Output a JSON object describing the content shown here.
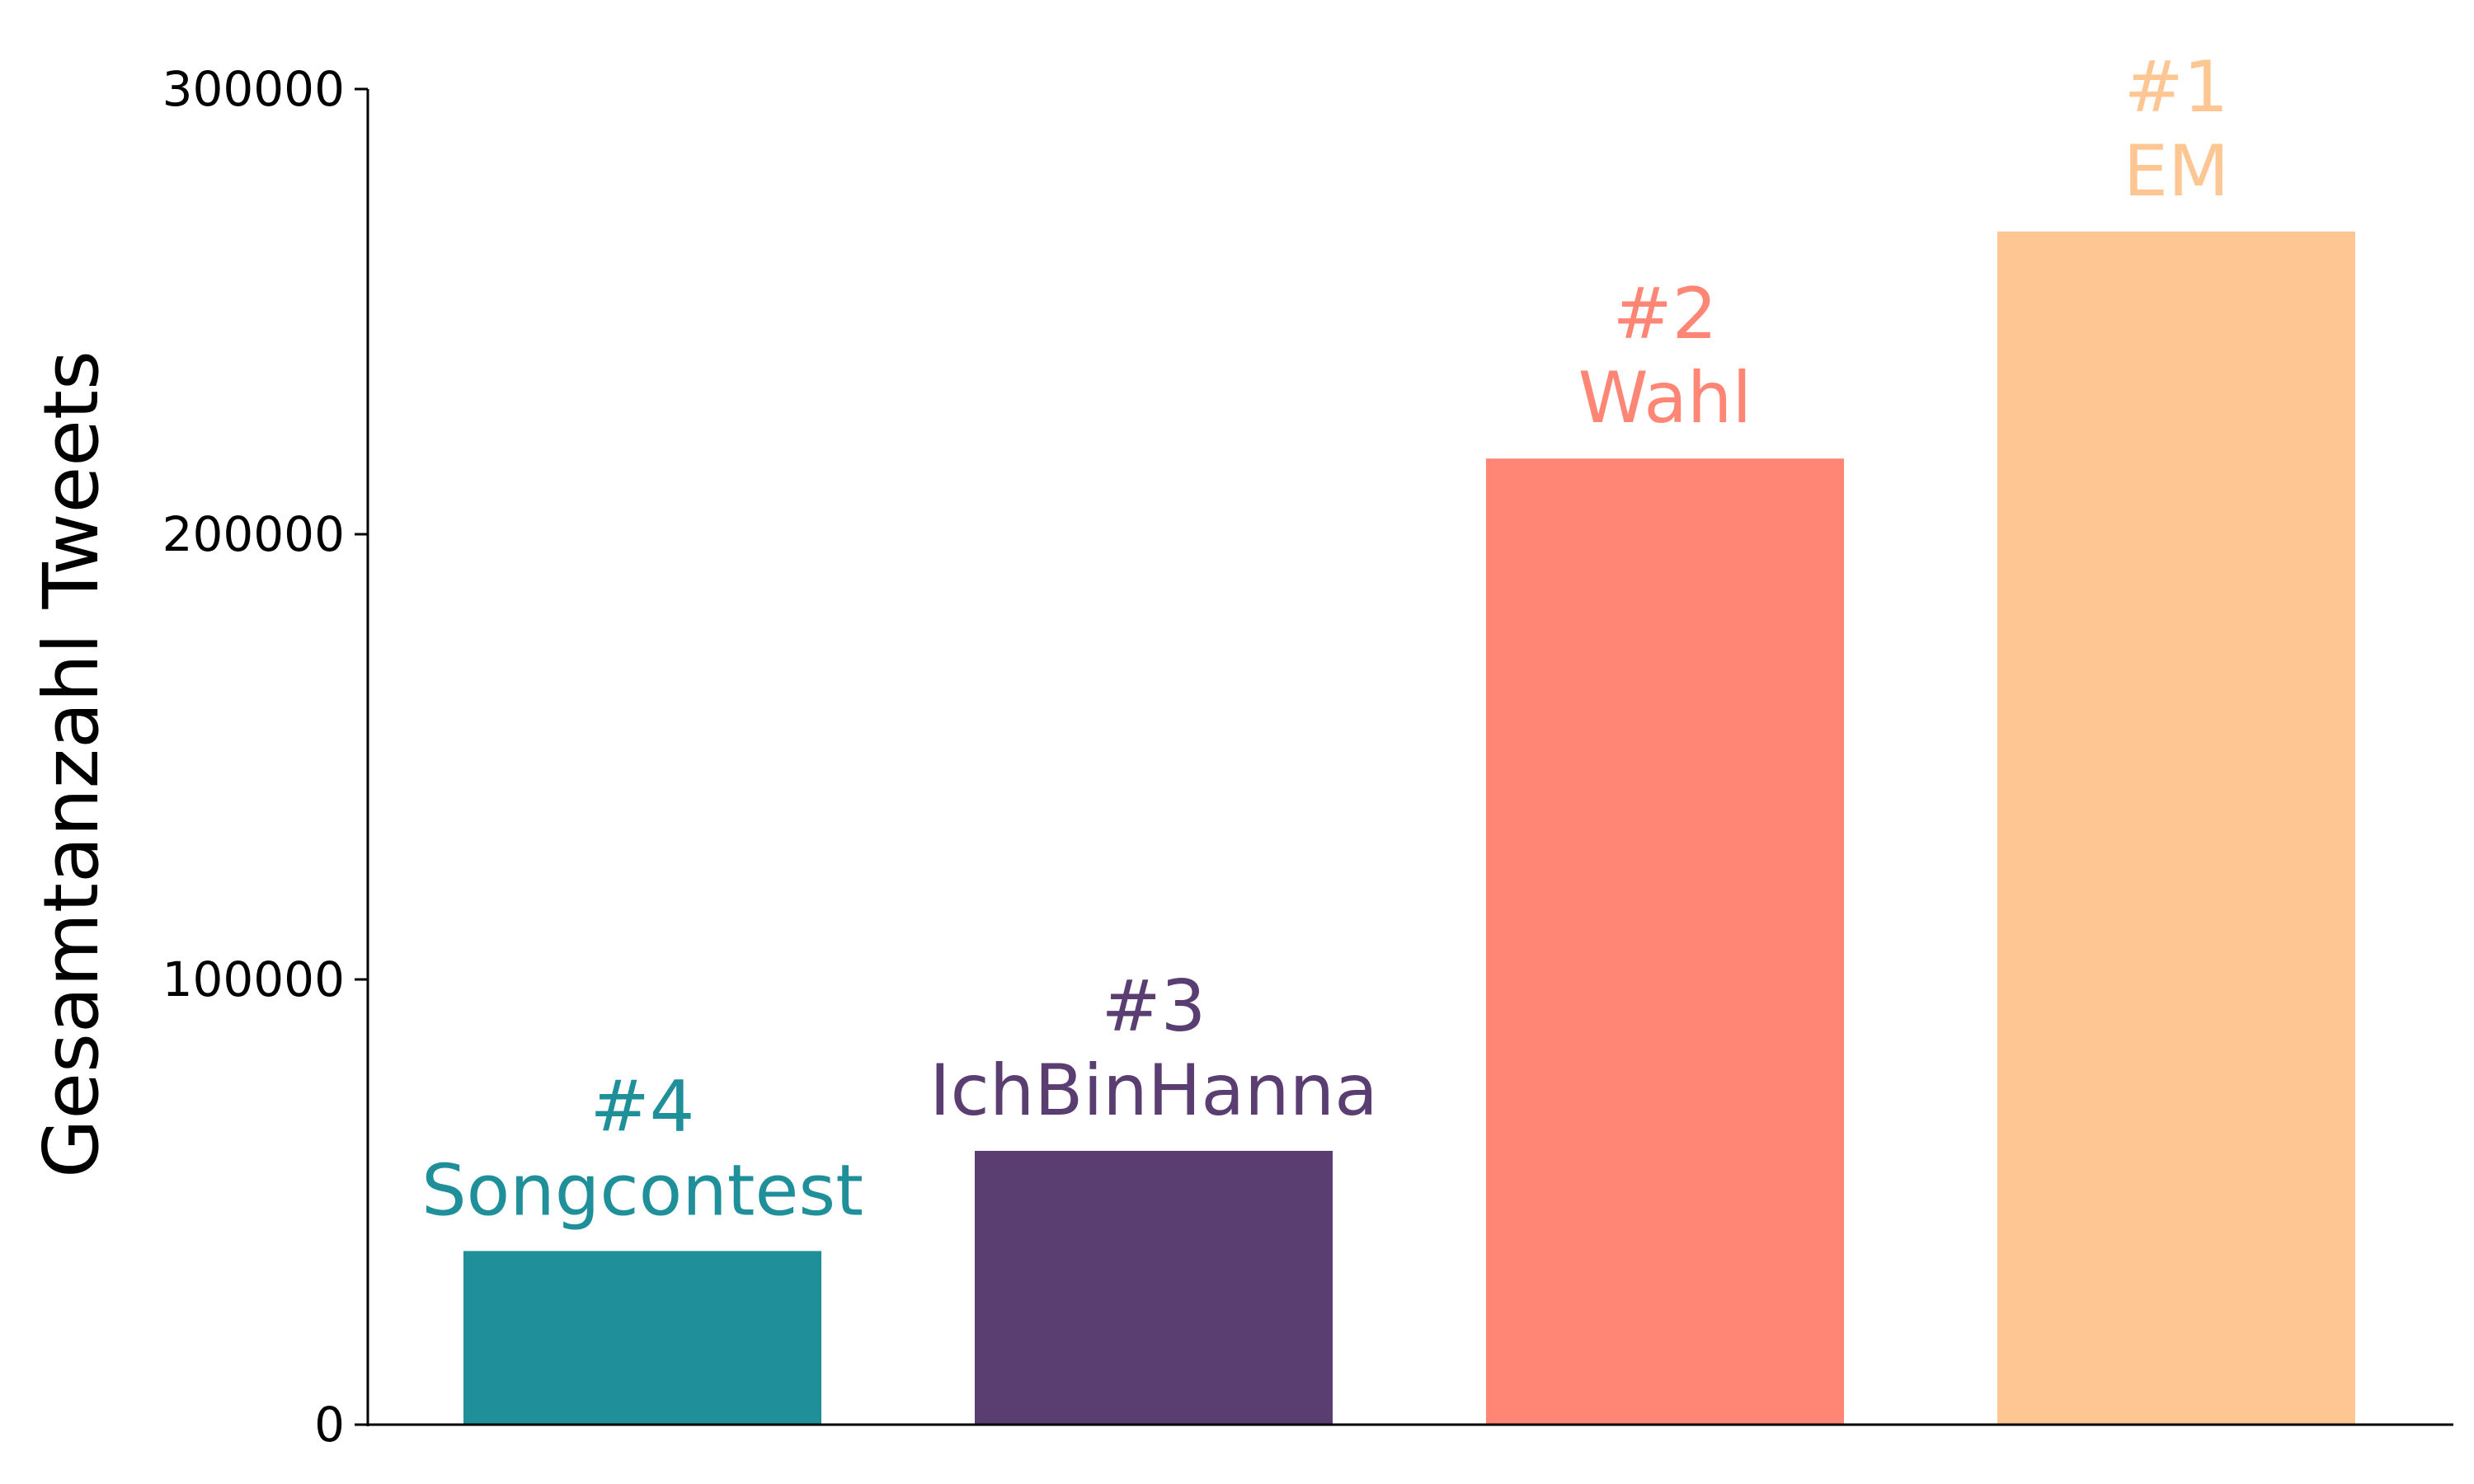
{
  "chart_data": {
    "type": "bar",
    "ylabel": "Gesamtanzahl Tweets",
    "xlabel": "",
    "title": "",
    "ylim": [
      0,
      300000
    ],
    "yticks": [
      {
        "value": 0,
        "label": "0"
      },
      {
        "value": 100000,
        "label": "100000"
      },
      {
        "value": 200000,
        "label": "200000"
      },
      {
        "value": 300000,
        "label": "300000"
      }
    ],
    "grid": false,
    "bars": [
      {
        "rank": "#4",
        "name": "Songcontest",
        "value": 39000,
        "color": "#1f8f99"
      },
      {
        "rank": "#3",
        "name": "IchBinHanna",
        "value": 61500,
        "color": "#5a3d71"
      },
      {
        "rank": "#2",
        "name": "Wahl",
        "value": 217000,
        "color": "#ff8574"
      },
      {
        "rank": "#1",
        "name": "EM",
        "value": 268000,
        "color": "#fec692"
      }
    ]
  }
}
